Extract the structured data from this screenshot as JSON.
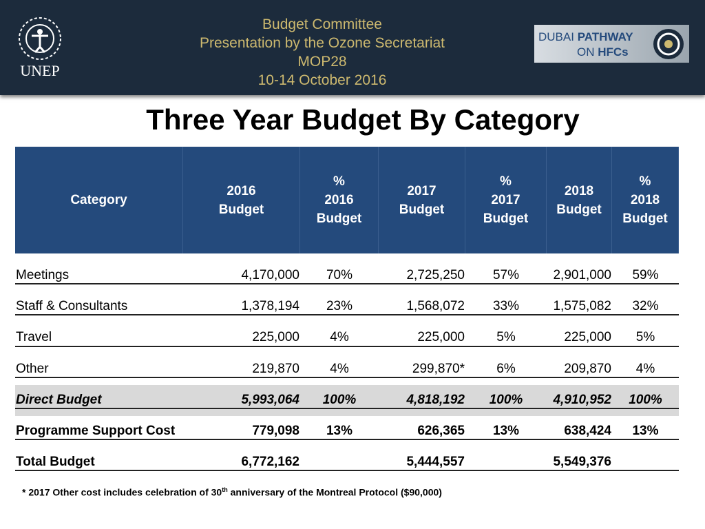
{
  "header": {
    "logo": "UNEP",
    "lines": [
      "Budget Committee",
      "Presentation by the Ozone Secretariat",
      "MOP28",
      "10-14 October 2016"
    ],
    "badge": {
      "line1_thin": "DUBAI",
      "line1_bold": "PATHWAY",
      "line2_thin": "ON",
      "line2_bold": "HFCs"
    }
  },
  "title": "Three Year Budget By Category",
  "table": {
    "columns": [
      [
        "Category"
      ],
      [
        "2016",
        "Budget"
      ],
      [
        "%",
        "2016",
        "Budget"
      ],
      [
        "2017",
        "Budget"
      ],
      [
        "%",
        "2017",
        "Budget"
      ],
      [
        "2018",
        "Budget"
      ],
      [
        "%",
        "2018",
        "Budget"
      ]
    ],
    "rows": [
      [
        "Meetings",
        "4,170,000",
        "70%",
        "2,725,250",
        "57%",
        "2,901,000",
        "59%"
      ],
      [
        "Staff & Consultants",
        "1,378,194",
        "23%",
        "1,568,072",
        "33%",
        "1,575,082",
        "32%"
      ],
      [
        "Travel",
        "225,000",
        "4%",
        "225,000",
        "5%",
        "225,000",
        "5%"
      ],
      [
        "Other",
        "219,870",
        "4%",
        "299,870*",
        "6%",
        "209,870",
        "4%"
      ],
      [
        "Direct Budget",
        "5,993,064",
        "100%",
        "4,818,192",
        "100%",
        "4,910,952",
        "100%"
      ],
      [
        "Programme Support Cost",
        "779,098",
        "13%",
        "626,365",
        "13%",
        "638,424",
        "13%"
      ],
      [
        "Total Budget",
        "6,772,162",
        null,
        "5,444,557",
        null,
        "5,549,376",
        null
      ]
    ]
  },
  "footnote": {
    "before": "* 2017 Other cost includes celebration of 30",
    "sup": "th",
    "after": " anniversary of the Montreal Protocol ($90,000)"
  }
}
